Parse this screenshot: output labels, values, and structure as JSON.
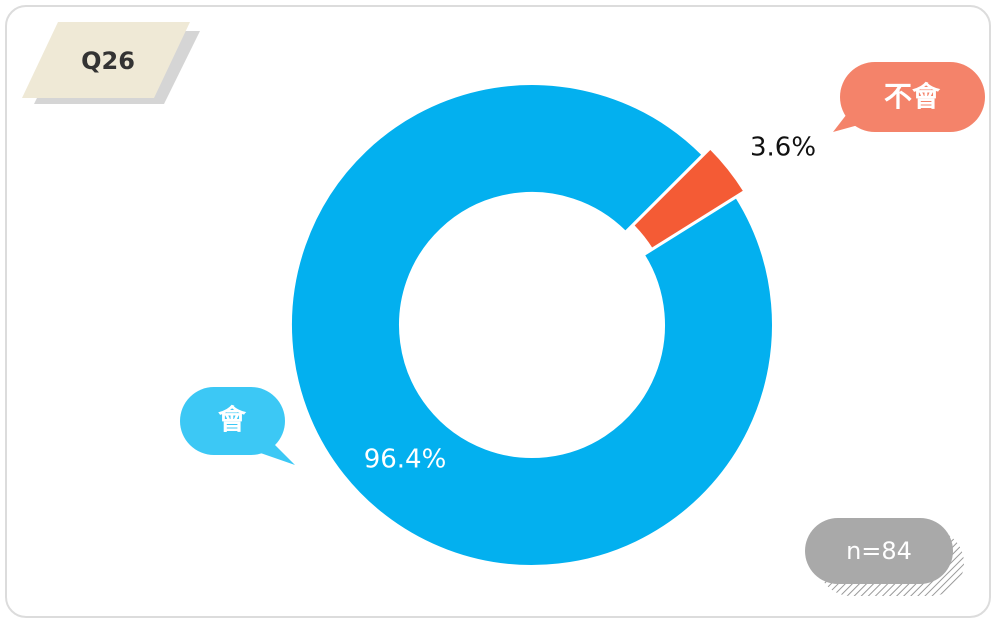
{
  "chart_data": {
    "type": "pie",
    "tag": "Q26",
    "note": "n=84",
    "categories": [
      "會",
      "不會"
    ],
    "values": [
      96.4,
      3.6
    ],
    "value_labels": [
      "96.4%",
      "3.6%"
    ],
    "colors": [
      "#03b0ef",
      "#f45b35"
    ],
    "bubble_colors": [
      "#3cc8f5",
      "#f4836a"
    ]
  }
}
